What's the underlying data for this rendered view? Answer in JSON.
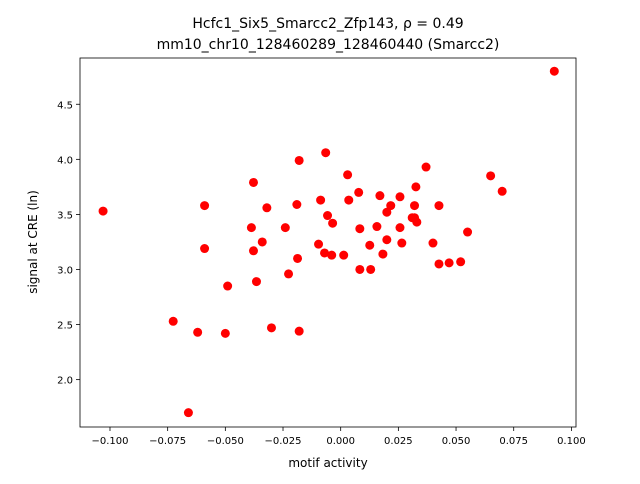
{
  "chart_data": {
    "type": "scatter",
    "title_line1": "Hcfc1_Six5_Smarcc2_Zfp143, ρ = 0.49",
    "title_line2": "mm10_chr10_128460289_128460440 (Smarcc2)",
    "xlabel": "motif activity",
    "ylabel": "signal at CRE (ln)",
    "xlim": [
      -0.113,
      0.102
    ],
    "ylim": [
      1.57,
      4.92
    ],
    "xticks": [
      -0.1,
      -0.075,
      -0.05,
      -0.025,
      0.0,
      0.025,
      0.05,
      0.075,
      0.1
    ],
    "xtick_labels": [
      "−0.100",
      "−0.075",
      "−0.050",
      "−0.025",
      "0.000",
      "0.025",
      "0.050",
      "0.075",
      "0.100"
    ],
    "yticks": [
      2.0,
      2.5,
      3.0,
      3.5,
      4.0,
      4.5
    ],
    "ytick_labels": [
      "2.0",
      "2.5",
      "3.0",
      "3.5",
      "4.0",
      "4.5"
    ],
    "marker_color": "#ff0000",
    "points": [
      [
        -0.103,
        3.53
      ],
      [
        -0.0726,
        2.53
      ],
      [
        -0.066,
        1.7
      ],
      [
        -0.062,
        2.43
      ],
      [
        -0.059,
        3.58
      ],
      [
        -0.059,
        3.19
      ],
      [
        -0.05,
        2.42
      ],
      [
        -0.049,
        2.85
      ],
      [
        -0.0387,
        3.38
      ],
      [
        -0.0378,
        3.79
      ],
      [
        -0.0378,
        3.17
      ],
      [
        -0.0365,
        2.89
      ],
      [
        -0.034,
        3.25
      ],
      [
        -0.032,
        3.56
      ],
      [
        -0.03,
        2.47
      ],
      [
        -0.024,
        3.38
      ],
      [
        -0.0226,
        2.96
      ],
      [
        -0.019,
        3.59
      ],
      [
        -0.0187,
        3.1
      ],
      [
        -0.018,
        2.44
      ],
      [
        -0.018,
        3.99
      ],
      [
        -0.0096,
        3.23
      ],
      [
        -0.0087,
        3.63
      ],
      [
        -0.0065,
        4.06
      ],
      [
        -0.007,
        3.15
      ],
      [
        -0.0057,
        3.49
      ],
      [
        -0.0039,
        3.13
      ],
      [
        -0.0035,
        3.42
      ],
      [
        0.0013,
        3.13
      ],
      [
        0.003,
        3.86
      ],
      [
        0.0035,
        3.63
      ],
      [
        0.0078,
        3.7
      ],
      [
        0.0083,
        3.37
      ],
      [
        0.0083,
        3.0
      ],
      [
        0.0126,
        3.22
      ],
      [
        0.013,
        3.0
      ],
      [
        0.0157,
        3.39
      ],
      [
        0.017,
        3.67
      ],
      [
        0.0183,
        3.14
      ],
      [
        0.02,
        3.52
      ],
      [
        0.02,
        3.27
      ],
      [
        0.0217,
        3.58
      ],
      [
        0.0257,
        3.66
      ],
      [
        0.0257,
        3.38
      ],
      [
        0.0265,
        3.24
      ],
      [
        0.031,
        3.47
      ],
      [
        0.032,
        3.58
      ],
      [
        0.032,
        3.47
      ],
      [
        0.0326,
        3.75
      ],
      [
        0.033,
        3.43
      ],
      [
        0.037,
        3.93
      ],
      [
        0.04,
        3.24
      ],
      [
        0.0426,
        3.05
      ],
      [
        0.0426,
        3.58
      ],
      [
        0.047,
        3.06
      ],
      [
        0.052,
        3.07
      ],
      [
        0.055,
        3.34
      ],
      [
        0.065,
        3.85
      ],
      [
        0.07,
        3.71
      ],
      [
        0.0926,
        4.8
      ]
    ]
  }
}
